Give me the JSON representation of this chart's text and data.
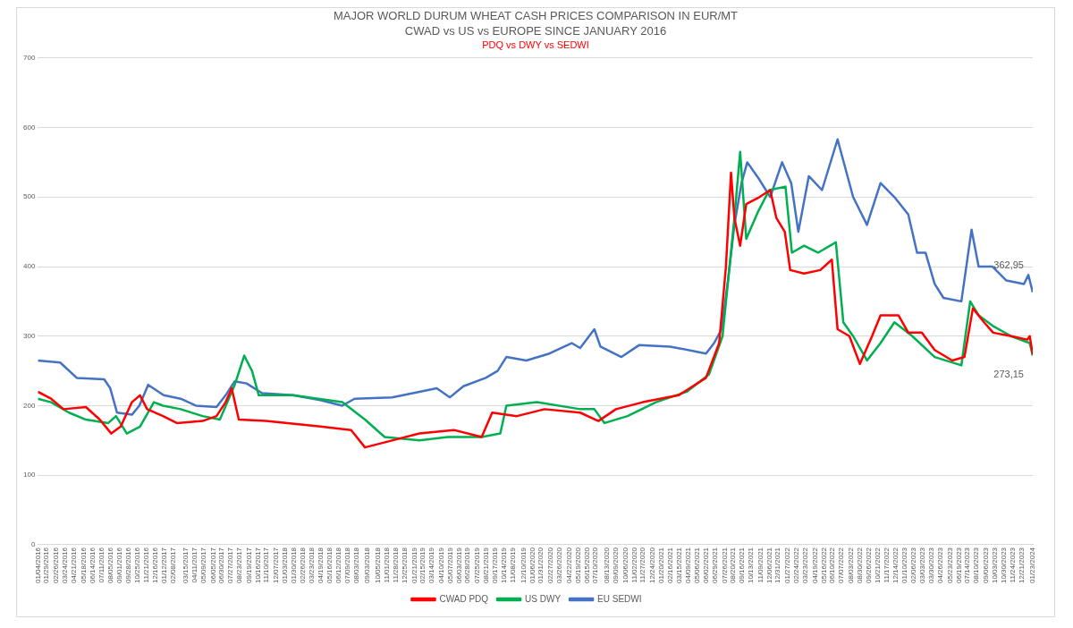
{
  "chart_data": {
    "type": "line",
    "title": "MAJOR WORLD DURUM WHEAT CASH PRICES COMPARISON IN EUR/MT",
    "subtitle": "CWAD vs US vs EUROPE SINCE JANUARY 2016",
    "annotations": [
      "PDQ vs DWY vs SEDWI",
      {
        "text": "362,95",
        "x": "2024-01-23",
        "y": 362.95
      },
      {
        "text": "273,15",
        "x": "2024-01-23",
        "y": 273.15
      }
    ],
    "ylim": [
      0,
      700
    ],
    "yticks": [
      0,
      100,
      200,
      300,
      400,
      500,
      600,
      700
    ],
    "xlim": [
      "2016-01-04",
      "2024-01-23"
    ],
    "xticks": [
      {
        "value": "2016-01-04",
        "label": "01/04/2016"
      },
      {
        "value": "2016-01-29",
        "label": "01/29/2016"
      },
      {
        "value": "2016-02-26",
        "label": "02/26/2016"
      },
      {
        "value": "2016-03-24",
        "label": "03/24/2016"
      },
      {
        "value": "2016-04-21",
        "label": "04/21/2016"
      },
      {
        "value": "2016-05-18",
        "label": "05/18/2016"
      },
      {
        "value": "2016-06-14",
        "label": "06/14/2016"
      },
      {
        "value": "2016-07-11",
        "label": "07/11/2016"
      },
      {
        "value": "2016-08-05",
        "label": "08/05/2016"
      },
      {
        "value": "2016-09-01",
        "label": "09/01/2016"
      },
      {
        "value": "2016-09-28",
        "label": "09/28/2016"
      },
      {
        "value": "2016-10-25",
        "label": "10/25/2016"
      },
      {
        "value": "2016-11-21",
        "label": "11/21/2016"
      },
      {
        "value": "2016-12-16",
        "label": "12/16/2016"
      },
      {
        "value": "2017-01-12",
        "label": "01/12/2017"
      },
      {
        "value": "2017-02-08",
        "label": "02/08/2017"
      },
      {
        "value": "2017-03-15",
        "label": "03/15/2017"
      },
      {
        "value": "2017-04-11",
        "label": "04/11/2017"
      },
      {
        "value": "2017-05-09",
        "label": "05/09/2017"
      },
      {
        "value": "2017-06-05",
        "label": "06/05/2017"
      },
      {
        "value": "2017-06-30",
        "label": "06/30/2017"
      },
      {
        "value": "2017-07-27",
        "label": "07/27/2017"
      },
      {
        "value": "2017-08-23",
        "label": "08/23/2017"
      },
      {
        "value": "2017-09-19",
        "label": "09/19/2017"
      },
      {
        "value": "2017-10-16",
        "label": "10/16/2017"
      },
      {
        "value": "2017-11-10",
        "label": "11/10/2017"
      },
      {
        "value": "2017-12-07",
        "label": "12/07/2017"
      },
      {
        "value": "2018-01-03",
        "label": "01/03/2018"
      },
      {
        "value": "2018-01-30",
        "label": "01/30/2018"
      },
      {
        "value": "2018-02-26",
        "label": "02/26/2018"
      },
      {
        "value": "2018-03-23",
        "label": "03/23/2018"
      },
      {
        "value": "2018-04-19",
        "label": "04/19/2018"
      },
      {
        "value": "2018-05-16",
        "label": "05/16/2018"
      },
      {
        "value": "2018-06-12",
        "label": "06/12/2018"
      },
      {
        "value": "2018-07-09",
        "label": "07/09/2018"
      },
      {
        "value": "2018-08-03",
        "label": "08/03/2018"
      },
      {
        "value": "2018-09-03",
        "label": "09/03/2018"
      },
      {
        "value": "2018-10-05",
        "label": "10/05/2018"
      },
      {
        "value": "2018-11-01",
        "label": "11/01/2018"
      },
      {
        "value": "2018-11-28",
        "label": "11/28/2018"
      },
      {
        "value": "2018-12-25",
        "label": "12/25/2018"
      },
      {
        "value": "2019-01-21",
        "label": "01/21/2019"
      },
      {
        "value": "2019-02-15",
        "label": "02/15/2019"
      },
      {
        "value": "2019-03-14",
        "label": "03/14/2019"
      },
      {
        "value": "2019-04-10",
        "label": "04/10/2019"
      },
      {
        "value": "2019-05-07",
        "label": "05/07/2019"
      },
      {
        "value": "2019-06-03",
        "label": "06/03/2019"
      },
      {
        "value": "2019-06-28",
        "label": "06/28/2019"
      },
      {
        "value": "2019-07-25",
        "label": "07/25/2019"
      },
      {
        "value": "2019-08-21",
        "label": "08/21/2019"
      },
      {
        "value": "2019-09-17",
        "label": "09/17/2019"
      },
      {
        "value": "2019-10-14",
        "label": "10/14/2019"
      },
      {
        "value": "2019-11-08",
        "label": "11/08/2019"
      },
      {
        "value": "2019-12-10",
        "label": "12/10/2019"
      },
      {
        "value": "2020-01-06",
        "label": "01/06/2020"
      },
      {
        "value": "2020-01-31",
        "label": "01/31/2020"
      },
      {
        "value": "2020-02-27",
        "label": "02/27/2020"
      },
      {
        "value": "2020-03-26",
        "label": "03/26/2020"
      },
      {
        "value": "2020-04-22",
        "label": "04/22/2020"
      },
      {
        "value": "2020-05-19",
        "label": "05/19/2020"
      },
      {
        "value": "2020-06-15",
        "label": "06/15/2020"
      },
      {
        "value": "2020-07-10",
        "label": "07/10/2020"
      },
      {
        "value": "2020-08-13",
        "label": "08/13/2020"
      },
      {
        "value": "2020-09-09",
        "label": "09/09/2020"
      },
      {
        "value": "2020-10-06",
        "label": "10/06/2020"
      },
      {
        "value": "2020-11-02",
        "label": "11/02/2020"
      },
      {
        "value": "2020-11-27",
        "label": "11/27/2020"
      },
      {
        "value": "2020-12-24",
        "label": "12/24/2020"
      },
      {
        "value": "2021-01-20",
        "label": "01/20/2021"
      },
      {
        "value": "2021-02-16",
        "label": "02/16/2021"
      },
      {
        "value": "2021-03-15",
        "label": "03/15/2021"
      },
      {
        "value": "2021-04-09",
        "label": "04/09/2021"
      },
      {
        "value": "2021-05-06",
        "label": "05/06/2021"
      },
      {
        "value": "2021-06-02",
        "label": "06/02/2021"
      },
      {
        "value": "2021-06-29",
        "label": "06/29/2021"
      },
      {
        "value": "2021-07-26",
        "label": "07/26/2021"
      },
      {
        "value": "2021-08-20",
        "label": "08/20/2021"
      },
      {
        "value": "2021-09-16",
        "label": "09/16/2021"
      },
      {
        "value": "2021-10-13",
        "label": "10/13/2021"
      },
      {
        "value": "2021-11-09",
        "label": "11/09/2021"
      },
      {
        "value": "2021-12-06",
        "label": "12/06/2021"
      },
      {
        "value": "2021-12-31",
        "label": "12/31/2021"
      },
      {
        "value": "2022-01-27",
        "label": "01/27/2022"
      },
      {
        "value": "2022-02-24",
        "label": "02/24/2022"
      },
      {
        "value": "2022-03-23",
        "label": "03/23/2022"
      },
      {
        "value": "2022-04-19",
        "label": "04/19/2022"
      },
      {
        "value": "2022-05-16",
        "label": "05/16/2022"
      },
      {
        "value": "2022-06-10",
        "label": "06/10/2022"
      },
      {
        "value": "2022-07-07",
        "label": "07/07/2022"
      },
      {
        "value": "2022-08-03",
        "label": "08/03/2022"
      },
      {
        "value": "2022-08-30",
        "label": "08/30/2022"
      },
      {
        "value": "2022-09-26",
        "label": "09/26/2022"
      },
      {
        "value": "2022-10-21",
        "label": "10/21/2022"
      },
      {
        "value": "2022-11-17",
        "label": "11/17/2022"
      },
      {
        "value": "2022-12-14",
        "label": "12/14/2022"
      },
      {
        "value": "2023-01-10",
        "label": "01/10/2023"
      },
      {
        "value": "2023-02-06",
        "label": "02/06/2023"
      },
      {
        "value": "2023-03-03",
        "label": "03/03/2023"
      },
      {
        "value": "2023-03-30",
        "label": "03/30/2023"
      },
      {
        "value": "2023-04-26",
        "label": "04/26/2023"
      },
      {
        "value": "2023-05-23",
        "label": "05/23/2023"
      },
      {
        "value": "2023-06-19",
        "label": "06/19/2023"
      },
      {
        "value": "2023-07-14",
        "label": "07/14/2023"
      },
      {
        "value": "2023-08-10",
        "label": "08/10/2023"
      },
      {
        "value": "2023-09-06",
        "label": "09/06/2023"
      },
      {
        "value": "2023-10-03",
        "label": "10/03/2023"
      },
      {
        "value": "2023-10-30",
        "label": "10/30/2023"
      },
      {
        "value": "2023-11-24",
        "label": "11/24/2023"
      },
      {
        "value": "2023-12-21",
        "label": "12/21/2023"
      },
      {
        "value": "2024-01-23",
        "label": "01/23/2024"
      }
    ],
    "grid": "y",
    "legend": "bottom",
    "marker": "none",
    "line_style": "solid",
    "series": [
      {
        "name": "CWAD PDQ",
        "color": "#ff0000",
        "x": [
          "2016-01-04",
          "2016-02-12",
          "2016-03-20",
          "2016-05-25",
          "2016-07-05",
          "2016-08-08",
          "2016-09-05",
          "2016-10-08",
          "2016-11-01",
          "2016-11-22",
          "2017-01-08",
          "2017-02-18",
          "2017-05-05",
          "2017-06-15",
          "2017-07-12",
          "2017-07-30",
          "2017-08-20",
          "2017-11-08",
          "2018-04-18",
          "2018-07-18",
          "2018-08-28",
          "2018-11-16",
          "2019-02-05",
          "2019-05-18",
          "2019-08-08",
          "2019-09-08",
          "2019-11-20",
          "2020-02-10",
          "2020-05-25",
          "2020-07-18",
          "2020-09-08",
          "2020-11-26",
          "2021-03-12",
          "2021-06-01",
          "2021-07-10",
          "2021-07-30",
          "2021-08-14",
          "2021-08-24",
          "2021-09-10",
          "2021-09-28",
          "2021-11-06",
          "2021-12-08",
          "2021-12-26",
          "2022-01-20",
          "2022-02-05",
          "2022-03-18",
          "2022-05-05",
          "2022-06-08",
          "2022-06-25",
          "2022-07-30",
          "2022-08-30",
          "2022-10-05",
          "2022-10-30",
          "2022-12-22",
          "2023-01-20",
          "2023-03-01",
          "2023-04-08",
          "2023-05-30",
          "2023-07-05",
          "2023-07-30",
          "2023-09-01",
          "2023-09-28",
          "2023-11-20",
          "2024-01-07",
          "2024-01-14",
          "2024-01-23"
        ],
        "values": [
          220,
          210,
          195,
          198,
          180,
          160,
          170,
          205,
          215,
          195,
          185,
          175,
          178,
          185,
          205,
          225,
          180,
          178,
          170,
          165,
          140,
          150,
          160,
          165,
          155,
          190,
          185,
          195,
          190,
          178,
          195,
          205,
          215,
          240,
          290,
          400,
          535,
          470,
          430,
          490,
          500,
          510,
          470,
          450,
          395,
          390,
          395,
          410,
          310,
          300,
          260,
          300,
          330,
          330,
          305,
          305,
          280,
          265,
          270,
          340,
          320,
          305,
          300,
          295,
          300,
          273.15
        ]
      },
      {
        "name": "US DWY",
        "color": "#00b050",
        "x": [
          "2016-01-04",
          "2016-02-12",
          "2016-04-05",
          "2016-05-25",
          "2016-07-30",
          "2016-08-22",
          "2016-09-23",
          "2016-11-01",
          "2016-12-12",
          "2017-01-08",
          "2017-03-01",
          "2017-05-05",
          "2017-06-25",
          "2017-08-08",
          "2017-09-05",
          "2017-09-28",
          "2017-10-18",
          "2018-01-27",
          "2018-06-22",
          "2018-08-28",
          "2018-10-25",
          "2019-02-05",
          "2019-04-30",
          "2019-08-08",
          "2019-10-02",
          "2019-10-20",
          "2020-01-18",
          "2020-05-25",
          "2020-07-06",
          "2020-08-05",
          "2020-10-12",
          "2021-01-04",
          "2021-04-05",
          "2021-06-10",
          "2021-07-20",
          "2021-08-24",
          "2021-09-10",
          "2021-09-28",
          "2021-11-03",
          "2021-12-05",
          "2022-01-22",
          "2022-02-10",
          "2022-03-18",
          "2022-04-28",
          "2022-06-20",
          "2022-07-12",
          "2022-08-10",
          "2022-09-20",
          "2022-10-30",
          "2022-12-10",
          "2023-02-01",
          "2023-04-08",
          "2023-06-26",
          "2023-07-22",
          "2023-08-16",
          "2023-09-26",
          "2023-11-20",
          "2024-01-14",
          "2024-01-23"
        ],
        "values": [
          210,
          205,
          190,
          180,
          175,
          185,
          160,
          170,
          205,
          200,
          195,
          185,
          180,
          230,
          272,
          250,
          215,
          215,
          205,
          180,
          155,
          150,
          155,
          155,
          160,
          200,
          205,
          195,
          195,
          175,
          185,
          205,
          220,
          245,
          300,
          470,
          565,
          440,
          480,
          510,
          515,
          420,
          430,
          420,
          435,
          320,
          300,
          265,
          290,
          320,
          300,
          270,
          258,
          350,
          330,
          315,
          300,
          290,
          272
        ]
      },
      {
        "name": "EU SEDWI",
        "color": "#4472c4",
        "x": [
          "2016-01-04",
          "2016-03-10",
          "2016-04-28",
          "2016-07-18",
          "2016-08-05",
          "2016-08-25",
          "2016-10-08",
          "2016-10-30",
          "2016-11-25",
          "2017-01-10",
          "2017-03-01",
          "2017-04-15",
          "2017-06-15",
          "2017-07-12",
          "2017-08-08",
          "2017-09-12",
          "2017-10-28",
          "2018-01-27",
          "2018-04-18",
          "2018-06-22",
          "2018-07-28",
          "2018-11-16",
          "2019-02-05",
          "2019-03-28",
          "2019-05-06",
          "2019-06-15",
          "2019-08-20",
          "2019-09-24",
          "2019-10-20",
          "2019-12-18",
          "2020-02-24",
          "2020-04-30",
          "2020-05-25",
          "2020-07-06",
          "2020-07-24",
          "2020-09-24",
          "2020-11-15",
          "2021-02-15",
          "2021-06-01",
          "2021-06-25",
          "2021-07-17",
          "2021-08-05",
          "2021-08-24",
          "2021-09-14",
          "2021-10-01",
          "2021-11-06",
          "2021-12-08",
          "2022-01-12",
          "2022-02-08",
          "2022-03-01",
          "2022-04-01",
          "2022-05-10",
          "2022-06-25",
          "2022-07-16",
          "2022-08-10",
          "2022-09-20",
          "2022-10-30",
          "2022-12-10",
          "2023-01-20",
          "2023-02-15",
          "2023-03-12",
          "2023-04-08",
          "2023-05-04",
          "2023-06-26",
          "2023-07-26",
          "2023-08-16",
          "2023-09-26",
          "2023-11-06",
          "2023-12-28",
          "2024-01-10",
          "2024-01-23"
        ],
        "values": [
          265,
          262,
          240,
          238,
          225,
          190,
          187,
          200,
          230,
          215,
          210,
          200,
          198,
          215,
          235,
          232,
          218,
          215,
          208,
          200,
          210,
          212,
          220,
          225,
          212,
          228,
          240,
          250,
          270,
          265,
          275,
          290,
          283,
          310,
          285,
          270,
          287,
          285,
          275,
          290,
          310,
          380,
          460,
          520,
          550,
          525,
          500,
          550,
          520,
          450,
          530,
          510,
          583,
          545,
          500,
          460,
          520,
          500,
          475,
          420,
          420,
          375,
          355,
          350,
          453,
          400,
          400,
          380,
          375,
          388,
          362.95
        ]
      }
    ]
  }
}
